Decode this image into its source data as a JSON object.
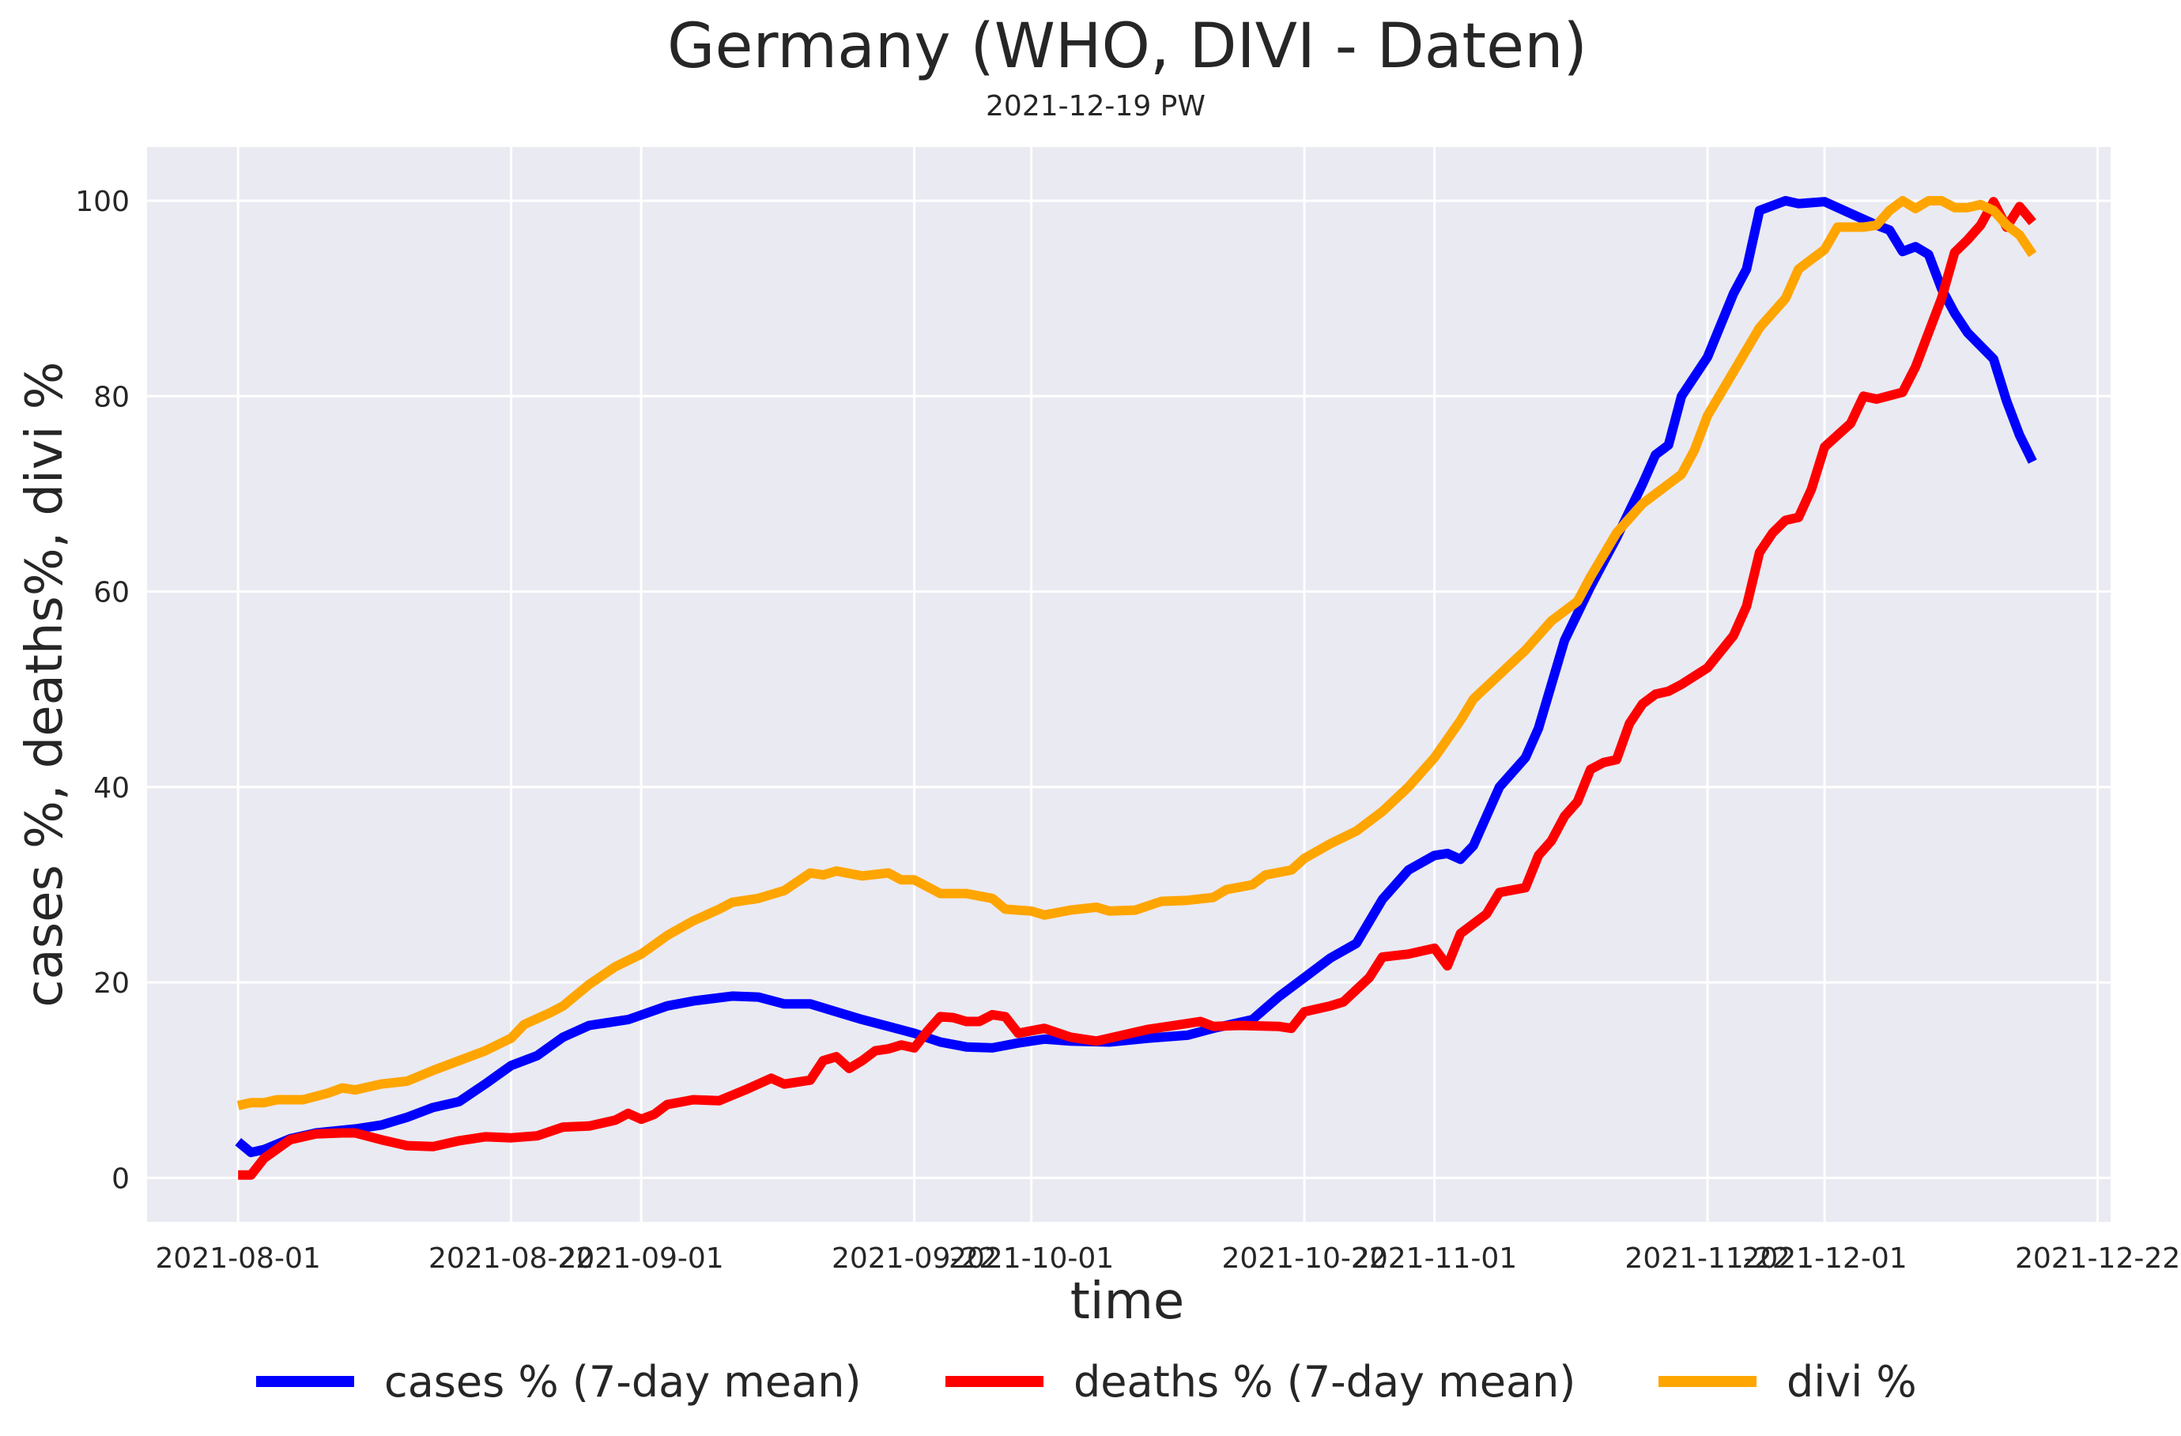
{
  "chart_data": {
    "type": "line",
    "title": "Germany (WHO, DIVI - Daten)",
    "subtitle": "2021-12-19 PW",
    "xlabel": "time",
    "ylabel": "cases %, deaths%, divi %",
    "x_start": "2021-08-01",
    "x_ticks": [
      "2021-08-01",
      "2021-08-22",
      "2021-09-01",
      "2021-09-22",
      "2021-10-01",
      "2021-10-22",
      "2021-11-01",
      "2021-11-22",
      "2021-12-01",
      "2021-12-22"
    ],
    "y_ticks": [
      0,
      20,
      40,
      60,
      80,
      100
    ],
    "xlim": [
      "2021-07-25",
      "2021-12-23"
    ],
    "ylim": [
      -4.5,
      105.5
    ],
    "grid": true,
    "legend_position": "bottom",
    "series": [
      {
        "name": "cases % (7-day mean)",
        "color": "#0000ff",
        "points": [
          [
            "2021-08-01",
            3.7
          ],
          [
            "2021-08-02",
            2.6
          ],
          [
            "2021-08-03",
            2.9
          ],
          [
            "2021-08-05",
            4.0
          ],
          [
            "2021-08-07",
            4.6
          ],
          [
            "2021-08-10",
            5.0
          ],
          [
            "2021-08-12",
            5.4
          ],
          [
            "2021-08-14",
            6.2
          ],
          [
            "2021-08-16",
            7.2
          ],
          [
            "2021-08-18",
            7.8
          ],
          [
            "2021-08-20",
            9.6
          ],
          [
            "2021-08-22",
            11.5
          ],
          [
            "2021-08-24",
            12.5
          ],
          [
            "2021-08-26",
            14.4
          ],
          [
            "2021-08-28",
            15.6
          ],
          [
            "2021-08-31",
            16.2
          ],
          [
            "2021-09-03",
            17.6
          ],
          [
            "2021-09-05",
            18.1
          ],
          [
            "2021-09-08",
            18.6
          ],
          [
            "2021-09-10",
            18.5
          ],
          [
            "2021-09-12",
            17.8
          ],
          [
            "2021-09-14",
            17.8
          ],
          [
            "2021-09-16",
            17.0
          ],
          [
            "2021-09-18",
            16.2
          ],
          [
            "2021-09-20",
            15.5
          ],
          [
            "2021-09-22",
            14.8
          ],
          [
            "2021-09-24",
            13.9
          ],
          [
            "2021-09-26",
            13.4
          ],
          [
            "2021-09-28",
            13.3
          ],
          [
            "2021-09-30",
            13.8
          ],
          [
            "2021-10-02",
            14.2
          ],
          [
            "2021-10-04",
            14.0
          ],
          [
            "2021-10-07",
            13.9
          ],
          [
            "2021-10-10",
            14.3
          ],
          [
            "2021-10-13",
            14.6
          ],
          [
            "2021-10-15",
            15.3
          ],
          [
            "2021-10-18",
            16.2
          ],
          [
            "2021-10-20",
            18.5
          ],
          [
            "2021-10-22",
            20.5
          ],
          [
            "2021-10-24",
            22.5
          ],
          [
            "2021-10-26",
            24.0
          ],
          [
            "2021-10-28",
            28.5
          ],
          [
            "2021-10-30",
            31.5
          ],
          [
            "2021-11-01",
            33.0
          ],
          [
            "2021-11-02",
            33.2
          ],
          [
            "2021-11-03",
            32.6
          ],
          [
            "2021-11-04",
            34.0
          ],
          [
            "2021-11-06",
            40.0
          ],
          [
            "2021-11-08",
            43.0
          ],
          [
            "2021-11-09",
            46.0
          ],
          [
            "2021-11-11",
            55.0
          ],
          [
            "2021-11-13",
            60.5
          ],
          [
            "2021-11-15",
            65.5
          ],
          [
            "2021-11-17",
            71.0
          ],
          [
            "2021-11-18",
            74.0
          ],
          [
            "2021-11-19",
            75.0
          ],
          [
            "2021-11-20",
            80.0
          ],
          [
            "2021-11-22",
            84.0
          ],
          [
            "2021-11-24",
            90.5
          ],
          [
            "2021-11-25",
            93.0
          ],
          [
            "2021-11-26",
            99.0
          ],
          [
            "2021-11-28",
            100.0
          ],
          [
            "2021-11-29",
            99.7
          ],
          [
            "2021-12-01",
            99.9
          ],
          [
            "2021-12-03",
            98.7
          ],
          [
            "2021-12-05",
            97.5
          ],
          [
            "2021-12-06",
            97.0
          ],
          [
            "2021-12-07",
            94.8
          ],
          [
            "2021-12-08",
            95.3
          ],
          [
            "2021-12-09",
            94.5
          ],
          [
            "2021-12-10",
            91.0
          ],
          [
            "2021-12-11",
            88.5
          ],
          [
            "2021-12-12",
            86.5
          ],
          [
            "2021-12-14",
            83.8
          ],
          [
            "2021-12-15",
            79.5
          ],
          [
            "2021-12-16",
            76.0
          ],
          [
            "2021-12-17",
            73.3
          ]
        ]
      },
      {
        "name": "deaths % (7-day mean)",
        "color": "#ff0000",
        "points": [
          [
            "2021-08-01",
            0.3
          ],
          [
            "2021-08-02",
            0.3
          ],
          [
            "2021-08-03",
            2.0
          ],
          [
            "2021-08-05",
            3.9
          ],
          [
            "2021-08-07",
            4.5
          ],
          [
            "2021-08-09",
            4.6
          ],
          [
            "2021-08-10",
            4.6
          ],
          [
            "2021-08-12",
            3.9
          ],
          [
            "2021-08-14",
            3.3
          ],
          [
            "2021-08-16",
            3.2
          ],
          [
            "2021-08-18",
            3.8
          ],
          [
            "2021-08-20",
            4.2
          ],
          [
            "2021-08-22",
            4.1
          ],
          [
            "2021-08-24",
            4.3
          ],
          [
            "2021-08-26",
            5.2
          ],
          [
            "2021-08-28",
            5.3
          ],
          [
            "2021-08-30",
            5.9
          ],
          [
            "2021-08-31",
            6.6
          ],
          [
            "2021-09-01",
            6.0
          ],
          [
            "2021-09-02",
            6.5
          ],
          [
            "2021-09-03",
            7.5
          ],
          [
            "2021-09-05",
            8.0
          ],
          [
            "2021-09-07",
            7.9
          ],
          [
            "2021-09-09",
            9.0
          ],
          [
            "2021-09-11",
            10.2
          ],
          [
            "2021-09-12",
            9.6
          ],
          [
            "2021-09-14",
            10.0
          ],
          [
            "2021-09-15",
            12.0
          ],
          [
            "2021-09-16",
            12.4
          ],
          [
            "2021-09-17",
            11.2
          ],
          [
            "2021-09-18",
            12.0
          ],
          [
            "2021-09-19",
            13.0
          ],
          [
            "2021-09-20",
            13.2
          ],
          [
            "2021-09-21",
            13.6
          ],
          [
            "2021-09-22",
            13.3
          ],
          [
            "2021-09-23",
            15.0
          ],
          [
            "2021-09-24",
            16.5
          ],
          [
            "2021-09-25",
            16.4
          ],
          [
            "2021-09-26",
            16.0
          ],
          [
            "2021-09-27",
            16.0
          ],
          [
            "2021-09-28",
            16.7
          ],
          [
            "2021-09-29",
            16.5
          ],
          [
            "2021-09-30",
            14.8
          ],
          [
            "2021-10-02",
            15.3
          ],
          [
            "2021-10-04",
            14.4
          ],
          [
            "2021-10-06",
            14.0
          ],
          [
            "2021-10-08",
            14.6
          ],
          [
            "2021-10-10",
            15.2
          ],
          [
            "2021-10-12",
            15.6
          ],
          [
            "2021-10-14",
            16.0
          ],
          [
            "2021-10-15",
            15.5
          ],
          [
            "2021-10-17",
            15.6
          ],
          [
            "2021-10-20",
            15.5
          ],
          [
            "2021-10-21",
            15.3
          ],
          [
            "2021-10-22",
            17.0
          ],
          [
            "2021-10-24",
            17.6
          ],
          [
            "2021-10-25",
            18.0
          ],
          [
            "2021-10-27",
            20.5
          ],
          [
            "2021-10-28",
            22.6
          ],
          [
            "2021-10-30",
            22.9
          ],
          [
            "2021-11-01",
            23.5
          ],
          [
            "2021-11-02",
            21.7
          ],
          [
            "2021-11-03",
            25.0
          ],
          [
            "2021-11-05",
            27.0
          ],
          [
            "2021-11-06",
            29.2
          ],
          [
            "2021-11-08",
            29.7
          ],
          [
            "2021-11-09",
            33.0
          ],
          [
            "2021-11-10",
            34.5
          ],
          [
            "2021-11-11",
            37.0
          ],
          [
            "2021-11-12",
            38.5
          ],
          [
            "2021-11-13",
            41.8
          ],
          [
            "2021-11-14",
            42.5
          ],
          [
            "2021-11-15",
            42.8
          ],
          [
            "2021-11-16",
            46.5
          ],
          [
            "2021-11-17",
            48.5
          ],
          [
            "2021-11-18",
            49.5
          ],
          [
            "2021-11-19",
            49.8
          ],
          [
            "2021-11-20",
            50.5
          ],
          [
            "2021-11-22",
            52.2
          ],
          [
            "2021-11-24",
            55.5
          ],
          [
            "2021-11-25",
            58.5
          ],
          [
            "2021-11-26",
            64.0
          ],
          [
            "2021-11-27",
            66.0
          ],
          [
            "2021-11-28",
            67.3
          ],
          [
            "2021-11-29",
            67.6
          ],
          [
            "2021-11-30",
            70.5
          ],
          [
            "2021-12-01",
            74.8
          ],
          [
            "2021-12-02",
            76.0
          ],
          [
            "2021-12-03",
            77.2
          ],
          [
            "2021-12-04",
            80.0
          ],
          [
            "2021-12-05",
            79.7
          ],
          [
            "2021-12-07",
            80.4
          ],
          [
            "2021-12-08",
            83.0
          ],
          [
            "2021-12-10",
            90.0
          ],
          [
            "2021-12-11",
            94.7
          ],
          [
            "2021-12-12",
            96.0
          ],
          [
            "2021-12-13",
            97.5
          ],
          [
            "2021-12-14",
            99.9
          ],
          [
            "2021-12-15",
            97.3
          ],
          [
            "2021-12-16",
            99.4
          ],
          [
            "2021-12-17",
            97.8
          ]
        ]
      },
      {
        "name": "divi %",
        "color": "#ffa500",
        "points": [
          [
            "2021-08-01",
            7.4
          ],
          [
            "2021-08-02",
            7.7
          ],
          [
            "2021-08-03",
            7.7
          ],
          [
            "2021-08-04",
            8.0
          ],
          [
            "2021-08-06",
            8.0
          ],
          [
            "2021-08-08",
            8.7
          ],
          [
            "2021-08-09",
            9.2
          ],
          [
            "2021-08-10",
            9.0
          ],
          [
            "2021-08-12",
            9.6
          ],
          [
            "2021-08-14",
            9.9
          ],
          [
            "2021-08-16",
            11.0
          ],
          [
            "2021-08-18",
            12.0
          ],
          [
            "2021-08-20",
            13.0
          ],
          [
            "2021-08-22",
            14.3
          ],
          [
            "2021-08-23",
            15.7
          ],
          [
            "2021-08-25",
            16.9
          ],
          [
            "2021-08-26",
            17.6
          ],
          [
            "2021-08-28",
            19.8
          ],
          [
            "2021-08-30",
            21.6
          ],
          [
            "2021-09-01",
            22.9
          ],
          [
            "2021-09-03",
            24.8
          ],
          [
            "2021-09-05",
            26.3
          ],
          [
            "2021-09-07",
            27.5
          ],
          [
            "2021-09-08",
            28.2
          ],
          [
            "2021-09-10",
            28.6
          ],
          [
            "2021-09-12",
            29.4
          ],
          [
            "2021-09-14",
            31.2
          ],
          [
            "2021-09-15",
            31.0
          ],
          [
            "2021-09-16",
            31.4
          ],
          [
            "2021-09-18",
            30.9
          ],
          [
            "2021-09-20",
            31.2
          ],
          [
            "2021-09-21",
            30.5
          ],
          [
            "2021-09-22",
            30.5
          ],
          [
            "2021-09-24",
            29.1
          ],
          [
            "2021-09-26",
            29.1
          ],
          [
            "2021-09-28",
            28.6
          ],
          [
            "2021-09-29",
            27.5
          ],
          [
            "2021-10-01",
            27.3
          ],
          [
            "2021-10-02",
            26.9
          ],
          [
            "2021-10-04",
            27.4
          ],
          [
            "2021-10-06",
            27.7
          ],
          [
            "2021-10-07",
            27.3
          ],
          [
            "2021-10-09",
            27.4
          ],
          [
            "2021-10-11",
            28.3
          ],
          [
            "2021-10-13",
            28.4
          ],
          [
            "2021-10-15",
            28.7
          ],
          [
            "2021-10-16",
            29.5
          ],
          [
            "2021-10-18",
            30.0
          ],
          [
            "2021-10-19",
            31.0
          ],
          [
            "2021-10-21",
            31.5
          ],
          [
            "2021-10-22",
            32.7
          ],
          [
            "2021-10-24",
            34.2
          ],
          [
            "2021-10-26",
            35.5
          ],
          [
            "2021-10-28",
            37.5
          ],
          [
            "2021-10-30",
            40.0
          ],
          [
            "2021-11-01",
            43.0
          ],
          [
            "2021-11-03",
            46.8
          ],
          [
            "2021-11-04",
            49.0
          ],
          [
            "2021-11-06",
            51.5
          ],
          [
            "2021-11-08",
            54.0
          ],
          [
            "2021-11-10",
            57.0
          ],
          [
            "2021-11-12",
            59.0
          ],
          [
            "2021-11-13",
            61.5
          ],
          [
            "2021-11-15",
            66.0
          ],
          [
            "2021-11-17",
            69.0
          ],
          [
            "2021-11-19",
            71.0
          ],
          [
            "2021-11-20",
            72.0
          ],
          [
            "2021-11-21",
            74.5
          ],
          [
            "2021-11-22",
            78.0
          ],
          [
            "2021-11-24",
            82.5
          ],
          [
            "2021-11-26",
            87.0
          ],
          [
            "2021-11-28",
            90.0
          ],
          [
            "2021-11-29",
            93.0
          ],
          [
            "2021-12-01",
            95.0
          ],
          [
            "2021-12-02",
            97.3
          ],
          [
            "2021-12-04",
            97.3
          ],
          [
            "2021-12-05",
            97.5
          ],
          [
            "2021-12-06",
            99.0
          ],
          [
            "2021-12-07",
            100.0
          ],
          [
            "2021-12-08",
            99.2
          ],
          [
            "2021-12-09",
            100.0
          ],
          [
            "2021-12-10",
            100.0
          ],
          [
            "2021-12-11",
            99.3
          ],
          [
            "2021-12-12",
            99.3
          ],
          [
            "2021-12-13",
            99.6
          ],
          [
            "2021-12-14",
            99.0
          ],
          [
            "2021-12-15",
            97.5
          ],
          [
            "2021-12-16",
            96.5
          ],
          [
            "2021-12-17",
            94.5
          ]
        ]
      }
    ]
  }
}
